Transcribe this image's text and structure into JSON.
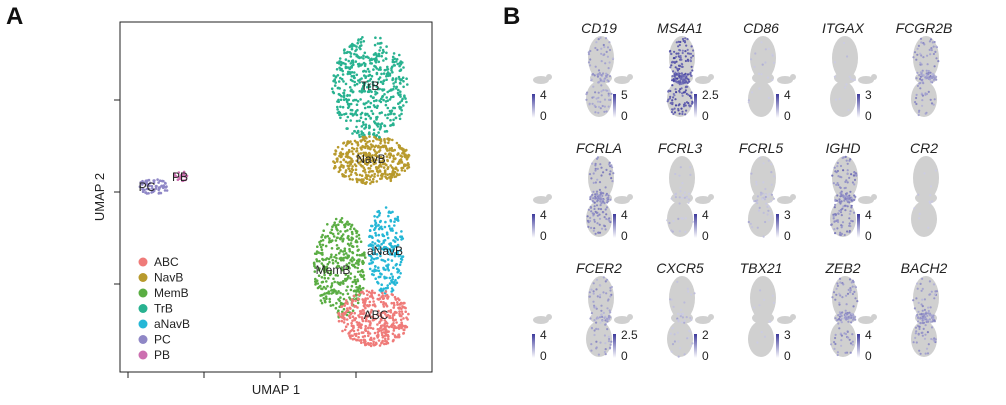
{
  "panel_a_letter": "A",
  "panel_b_letter": "B",
  "colors": {
    "ABC": "#ef7b79",
    "NavB": "#b89a2d",
    "MemB": "#5aad43",
    "TrB": "#28b290",
    "aNavB": "#25b7d6",
    "PC": "#8f87c6",
    "PB": "#cc6fb0",
    "expr_low": "#dcdcea",
    "expr_high": "#3d3a9c",
    "no_expr": "#d0d0d0"
  },
  "chart_data": [
    {
      "type": "scatter",
      "title": "",
      "xlabel": "UMAP 1",
      "ylabel": "UMAP 2",
      "grid": false,
      "legend_position": "bottom-left",
      "legend": [
        "ABC",
        "NavB",
        "MemB",
        "TrB",
        "aNavB",
        "PC",
        "PB"
      ],
      "clusters": [
        {
          "name": "ABC",
          "label": "ABC"
        },
        {
          "name": "NavB",
          "label": "NavB"
        },
        {
          "name": "MemB",
          "label": "MemB"
        },
        {
          "name": "TrB",
          "label": "TrB"
        },
        {
          "name": "aNavB",
          "label": "aNavB"
        },
        {
          "name": "PC",
          "label": "PC"
        },
        {
          "name": "PB",
          "label": "PB"
        }
      ]
    },
    {
      "type": "heatmap",
      "title": "",
      "panels": [
        {
          "gene": "CD19",
          "scale_max": "4",
          "scale_min": "0",
          "density": 0.45
        },
        {
          "gene": "MS4A1",
          "scale_max": "5",
          "scale_min": "0",
          "density": 0.95
        },
        {
          "gene": "CD86",
          "scale_max": "2.5",
          "scale_min": "0",
          "density": 0.12
        },
        {
          "gene": "ITGAX",
          "scale_max": "4",
          "scale_min": "0",
          "density": 0.05
        },
        {
          "gene": "FCGR2B",
          "scale_max": "3",
          "scale_min": "0",
          "density": 0.5
        },
        {
          "gene": "FCRLA",
          "scale_max": "4",
          "scale_min": "0",
          "density": 0.6
        },
        {
          "gene": "FCRL3",
          "scale_max": "4",
          "scale_min": "0",
          "density": 0.15
        },
        {
          "gene": "FCRL5",
          "scale_max": "4",
          "scale_min": "0",
          "density": 0.2
        },
        {
          "gene": "IGHD",
          "scale_max": "3",
          "scale_min": "0",
          "density": 0.6
        },
        {
          "gene": "CR2",
          "scale_max": "4",
          "scale_min": "0",
          "density": 0.05
        },
        {
          "gene": "FCER2",
          "scale_max": "4",
          "scale_min": "0",
          "density": 0.45
        },
        {
          "gene": "CXCR5",
          "scale_max": "2.5",
          "scale_min": "0",
          "density": 0.18
        },
        {
          "gene": "TBX21",
          "scale_max": "2",
          "scale_min": "0",
          "density": 0.04
        },
        {
          "gene": "ZEB2",
          "scale_max": "3",
          "scale_min": "0",
          "density": 0.5
        },
        {
          "gene": "BACH2",
          "scale_max": "4",
          "scale_min": "0",
          "density": 0.5
        }
      ]
    }
  ]
}
